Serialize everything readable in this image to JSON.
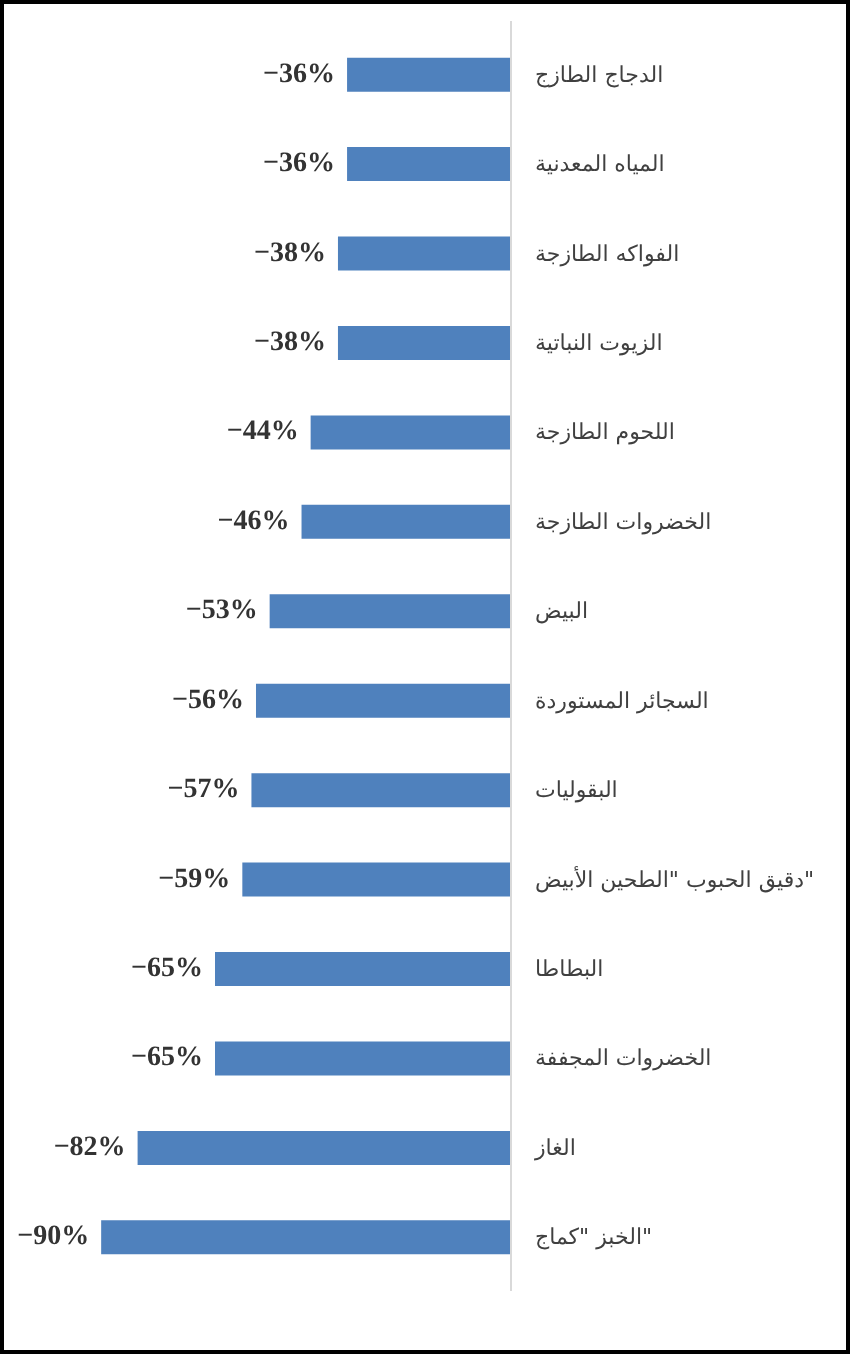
{
  "chart_data": {
    "type": "bar",
    "orientation": "horizontal",
    "color": "#4f81bd",
    "categories": [
      "الدجاج الطازج",
      "المياه المعدنية",
      "الفواكه الطازجة",
      "الزيوت النباتية",
      "اللحوم الطازجة",
      "الخضروات الطازجة",
      "البيض",
      "السجائر المستوردة",
      "البقوليات",
      "دقيق الحبوب \"الطحين الأبيض\"",
      "البطاطا",
      "الخضروات المجففة",
      "الغاز",
      "الخبز \"كماج\""
    ],
    "values": [
      -36,
      -36,
      -38,
      -38,
      -44,
      -46,
      -53,
      -56,
      -57,
      -59,
      -65,
      -65,
      -82,
      -90
    ],
    "value_labels": [
      "−36%",
      "−36%",
      "−38%",
      "−38%",
      "−44%",
      "−46%",
      "−53%",
      "−56%",
      "−57%",
      "−59%",
      "−65%",
      "−65%",
      "−82%",
      "−90%"
    ]
  }
}
